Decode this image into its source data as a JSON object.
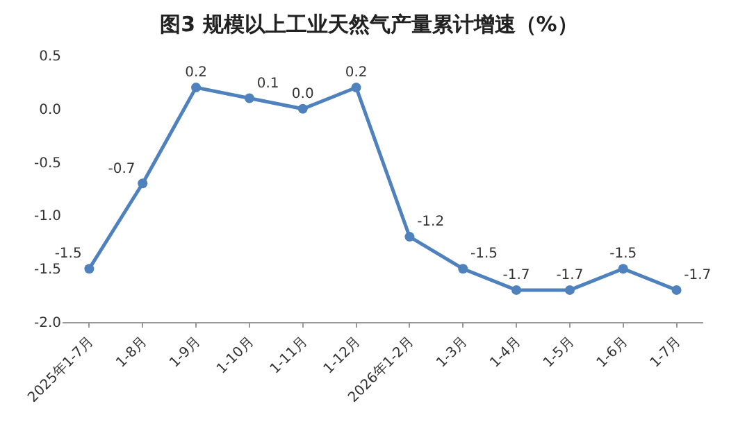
{
  "chart_data": {
    "type": "line",
    "title": "图3 规模以上工业天然气产量累计增速（%）",
    "categories": [
      "2025年1-7月",
      "1-8月",
      "1-9月",
      "1-10月",
      "1-11月",
      "1-12月",
      "2026年1-2月",
      "1-3月",
      "1-4月",
      "1-5月",
      "1-6月",
      "1-7月"
    ],
    "series": [
      {
        "color": "#4f81bd",
        "values": [
          -1.5,
          -0.7,
          0.2,
          0.1,
          0.0,
          0.2,
          -1.2,
          -1.5,
          -1.7,
          -1.7,
          -1.5,
          -1.7
        ],
        "value_labels": [
          "-1.5",
          "-0.7",
          "0.2",
          "0.1",
          "0.0",
          "0.2",
          "-1.2",
          "-1.5",
          "-1.7",
          "-1.7",
          "-1.5",
          "-1.7"
        ]
      }
    ],
    "ylim": [
      -2.0,
      0.5
    ],
    "yticks": [
      0.5,
      {
        "value": 0,
        "label": "0.0"
      },
      -0.5,
      {
        "value": -1,
        "label": "-1.0"
      },
      -1.5,
      {
        "value": -2,
        "label": "-2.0"
      }
    ],
    "legend": false,
    "marker": "circle",
    "line_style": "solid"
  }
}
